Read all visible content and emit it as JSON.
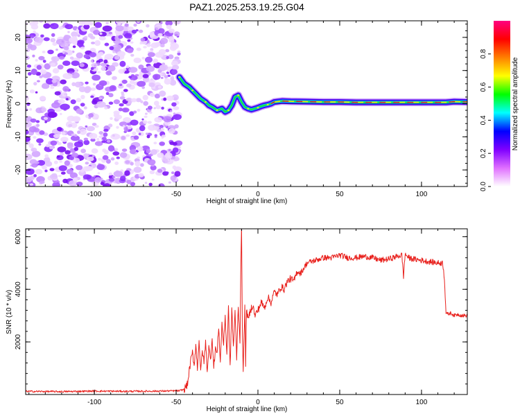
{
  "title": "PAZ1.2025.253.19.25.G04",
  "chart_data": [
    {
      "type": "heatmap",
      "title": "PAZ1.2025.253.19.25.G04",
      "xlabel": "Height of straight line (km)",
      "ylabel": "Frequency (Hz)",
      "xlim": [
        -142,
        128
      ],
      "ylim": [
        -25,
        25
      ],
      "xticks": [
        -100,
        -50,
        0,
        50,
        100
      ],
      "yticks": [
        -20,
        -10,
        0,
        10,
        20
      ],
      "xtick_labels": [
        "-100",
        "-50",
        "0",
        "50",
        "100"
      ],
      "ytick_labels": [
        "-20",
        "-10",
        "0",
        "10",
        "20"
      ],
      "noise_region_x": [
        -142,
        -48
      ],
      "ridge": {
        "x": [
          -48,
          -45,
          -42,
          -40,
          -38,
          -35,
          -32,
          -30,
          -28,
          -25,
          -22,
          -20,
          -18,
          -16,
          -14,
          -12,
          -10,
          -8,
          -6,
          -4,
          -2,
          0,
          2,
          4,
          6,
          8,
          10,
          15,
          20,
          30,
          40,
          50,
          60,
          70,
          80,
          90,
          100,
          110,
          115,
          120,
          128
        ],
        "freq": [
          8,
          6,
          5,
          4,
          3,
          1.5,
          0.5,
          -0.5,
          -1,
          -2,
          -1.5,
          -2.5,
          -2,
          -0.5,
          2,
          2.5,
          0.5,
          -1,
          -1.5,
          -1.8,
          -1.5,
          -1.2,
          -0.8,
          -0.5,
          -0.3,
          0,
          0.5,
          0.8,
          0.7,
          0.6,
          0.5,
          0.5,
          0.4,
          0.4,
          0.4,
          0.4,
          0.4,
          0.4,
          0.4,
          0.6,
          0.5
        ]
      },
      "colorbar": {
        "label": "Normalized spectral amplitude",
        "ticks": [
          0.0,
          0.2,
          0.4,
          0.6,
          0.8
        ],
        "tick_labels": [
          "0.0",
          "0.2",
          "0.4",
          "0.6",
          "0.8"
        ],
        "range": [
          0,
          1
        ],
        "colors": [
          "#ffffff",
          "#e070ff",
          "#8000ff",
          "#0000ff",
          "#00ffff",
          "#00ff00",
          "#ffff00",
          "#ff8000",
          "#ff0000",
          "#ff0080"
        ]
      }
    },
    {
      "type": "line",
      "xlabel": "Height of straight line (km)",
      "ylabel": "SNR (10 * v/v)",
      "xlim": [
        -142,
        128
      ],
      "ylim": [
        0,
        6300
      ],
      "xticks": [
        -100,
        -50,
        0,
        50,
        100
      ],
      "yticks": [
        2000,
        4000,
        6000
      ],
      "xtick_labels": [
        "-100",
        "-50",
        "0",
        "50",
        "100"
      ],
      "ytick_labels": [
        "2000",
        "4000",
        "6000"
      ],
      "series": [
        {
          "name": "SNR",
          "color": "#e8201c",
          "x": [
            -142,
            -120,
            -100,
            -80,
            -60,
            -48,
            -45,
            -43,
            -42,
            -41,
            -40,
            -39,
            -38,
            -37,
            -36,
            -35,
            -34,
            -33,
            -32,
            -31,
            -30,
            -29,
            -28,
            -27,
            -26,
            -25,
            -24,
            -23,
            -22,
            -21,
            -20,
            -19,
            -18,
            -17,
            -16,
            -15,
            -14,
            -13,
            -12,
            -11,
            -10.5,
            -10,
            -9.5,
            -9,
            -8,
            -7.5,
            -7,
            -6,
            -5,
            -4,
            -3,
            -2,
            0,
            2,
            4,
            6,
            8,
            10,
            12,
            14,
            16,
            18,
            20,
            22,
            24,
            26,
            28,
            30,
            35,
            40,
            45,
            50,
            55,
            60,
            65,
            70,
            75,
            80,
            85,
            88,
            89,
            90,
            92,
            95,
            100,
            105,
            110,
            113,
            114,
            115,
            116,
            118,
            120,
            122,
            125,
            128
          ],
          "values": [
            120,
            110,
            130,
            120,
            130,
            140,
            200,
            400,
            900,
            1300,
            1600,
            1100,
            1900,
            1000,
            2100,
            800,
            1700,
            1200,
            2000,
            900,
            1800,
            1300,
            2200,
            1000,
            1800,
            1500,
            2600,
            1200,
            2700,
            1900,
            3000,
            1500,
            3300,
            1000,
            3300,
            1800,
            3100,
            1400,
            3400,
            2000,
            4600,
            6300,
            2300,
            1000,
            3300,
            1200,
            3300,
            2800,
            3100,
            3300,
            3400,
            3000,
            3200,
            3500,
            3300,
            3700,
            3500,
            3900,
            3800,
            4100,
            4000,
            4300,
            4400,
            4300,
            4700,
            4600,
            4800,
            5000,
            5100,
            5200,
            5200,
            5300,
            5200,
            5200,
            5250,
            5200,
            5100,
            5150,
            5250,
            5300,
            4500,
            5350,
            5200,
            5150,
            5100,
            5050,
            5000,
            5000,
            4400,
            3100,
            3050,
            3100,
            3000,
            3050,
            3000,
            3000
          ]
        }
      ]
    }
  ]
}
